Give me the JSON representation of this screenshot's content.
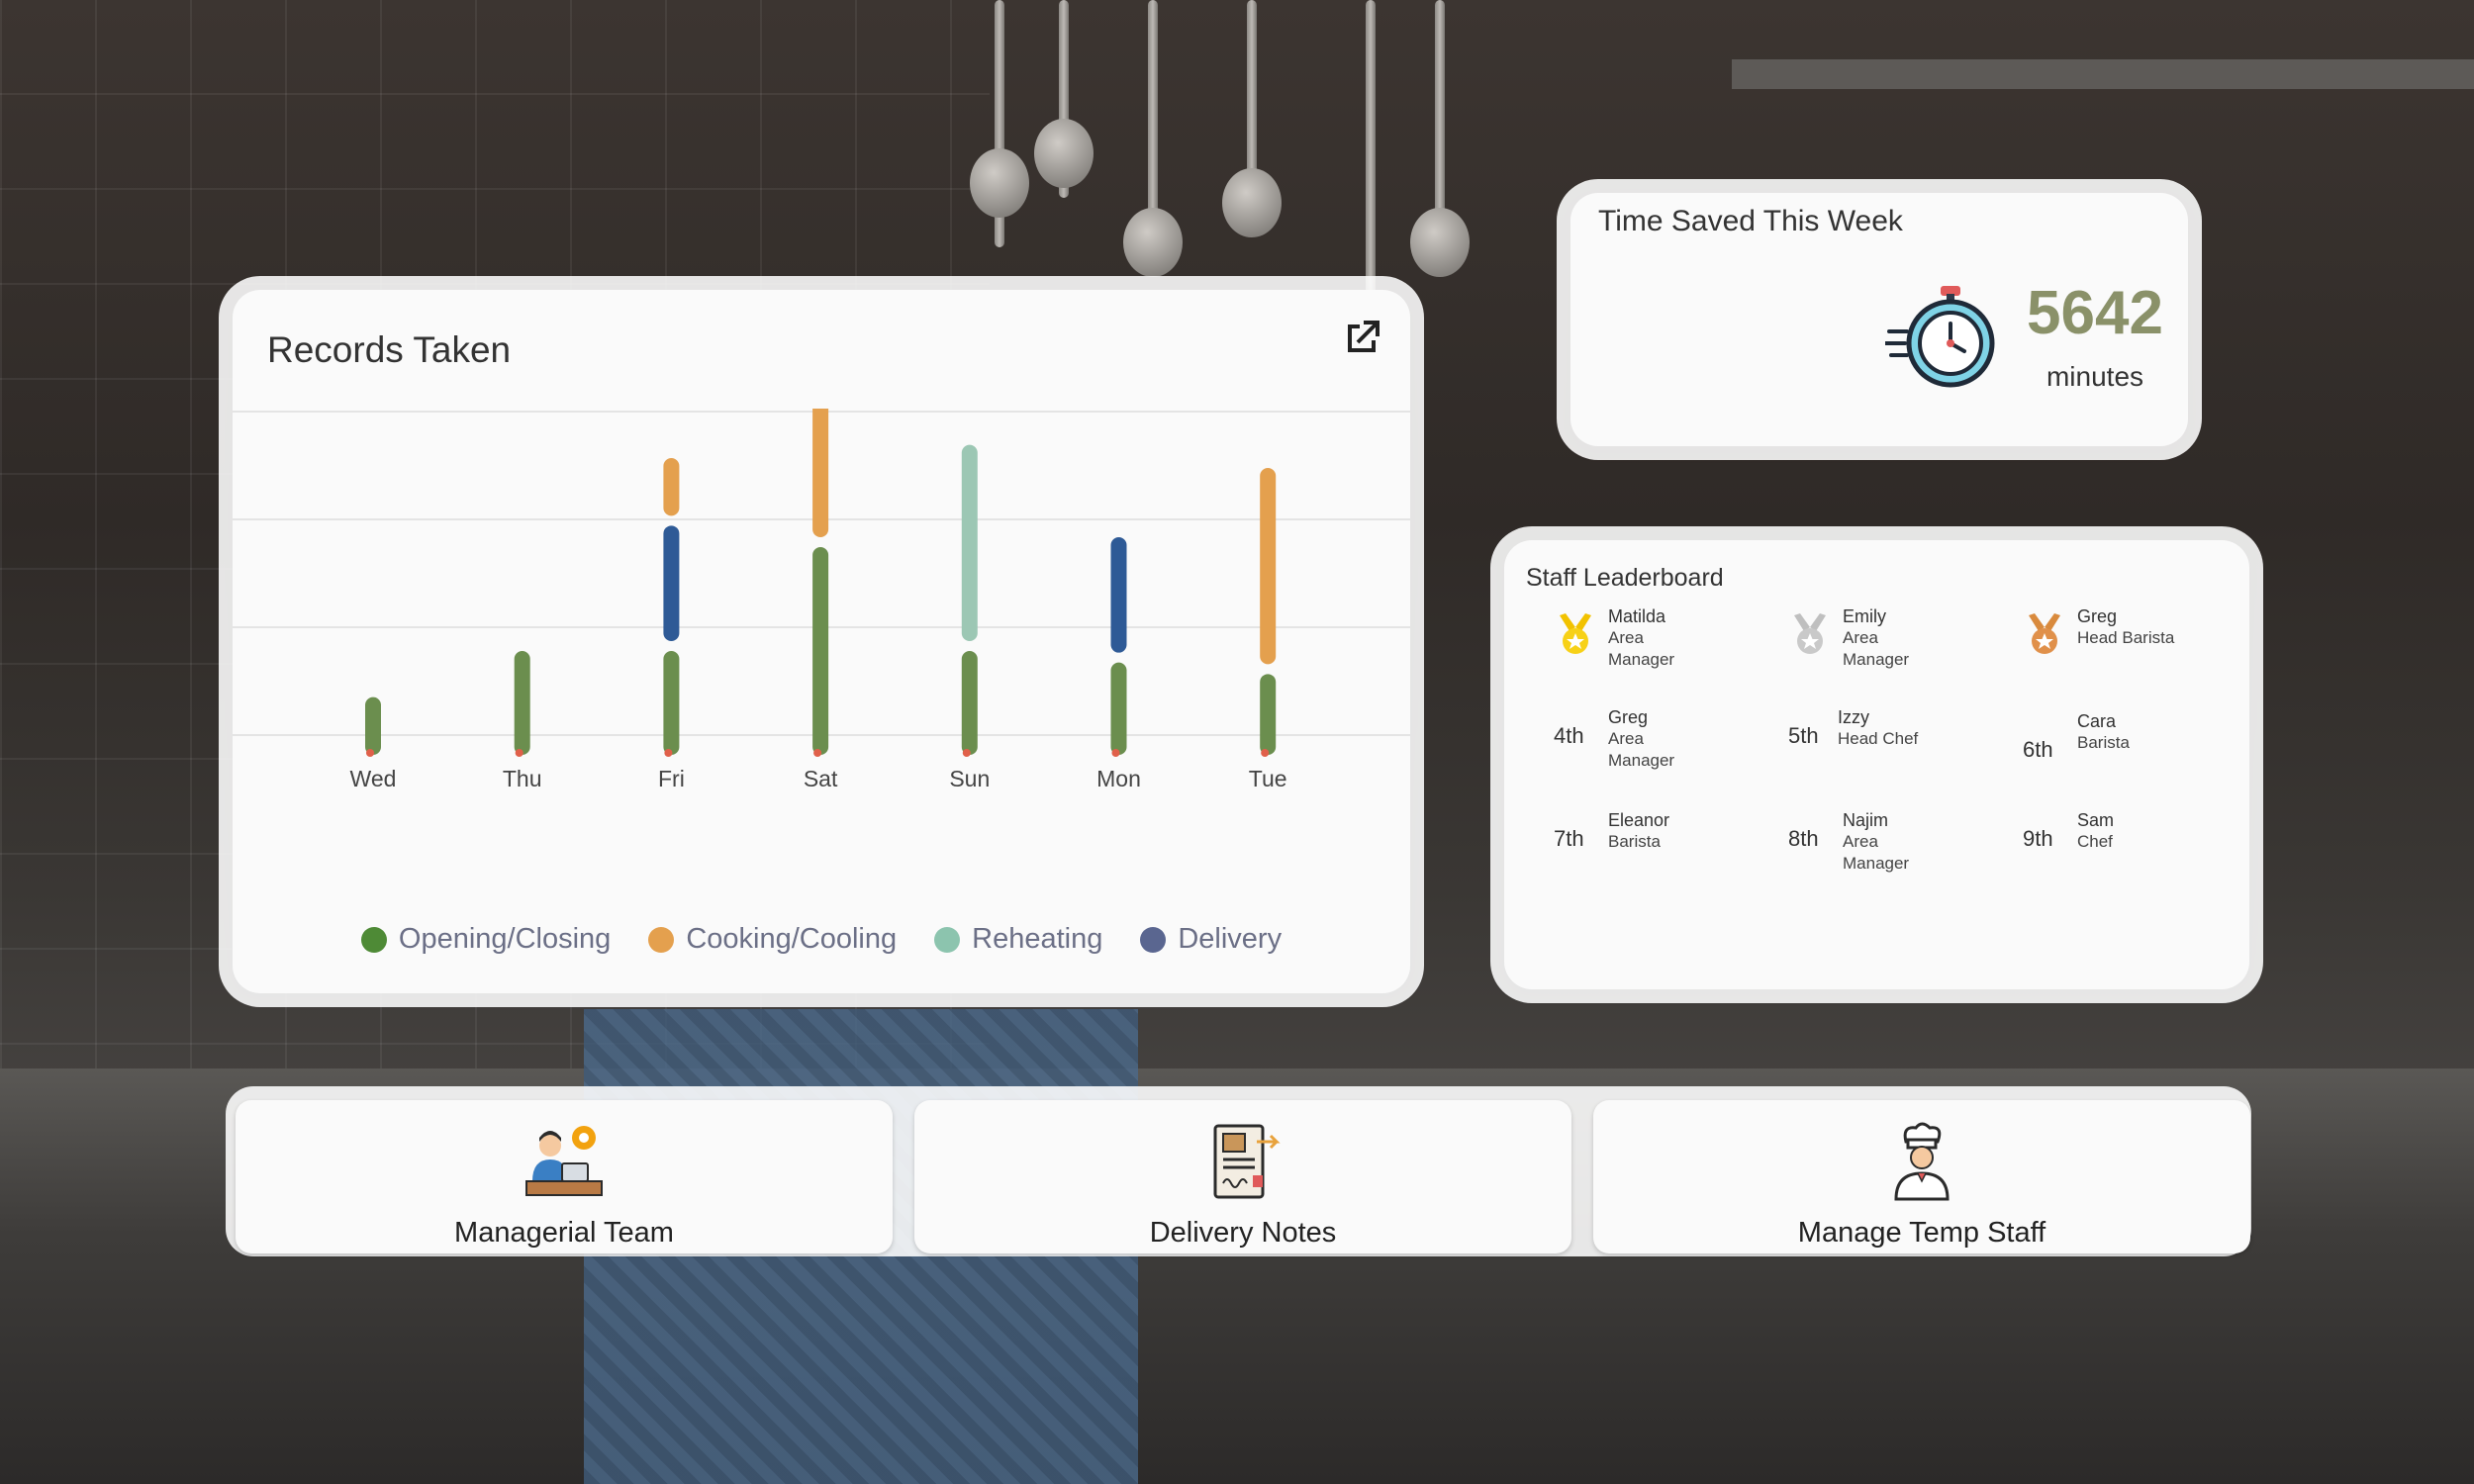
{
  "records": {
    "title": "Records Taken",
    "external_icon": "external-link-icon"
  },
  "chart_data": {
    "type": "bar",
    "title": "Records Taken",
    "categories": [
      "Wed",
      "Thu",
      "Fri",
      "Sat",
      "Sun",
      "Mon",
      "Tue"
    ],
    "series": [
      {
        "name": "Opening/Closing",
        "color": "#6b8e4e",
        "values": [
          5,
          9,
          9,
          18,
          9,
          8,
          7
        ]
      },
      {
        "name": "Cooking/Cooling",
        "color": "#e4a04e",
        "values": [
          0,
          0,
          5,
          12,
          0,
          0,
          17
        ]
      },
      {
        "name": "Reheating",
        "color": "#9cc7b4",
        "values": [
          0,
          0,
          0,
          0,
          17,
          0,
          0
        ]
      },
      {
        "name": "Delivery",
        "color": "#2e5a96",
        "values": [
          0,
          0,
          10,
          0,
          0,
          10,
          0
        ]
      }
    ],
    "ylim": [
      0,
      30
    ],
    "grid": true,
    "legend": "bottom"
  },
  "time_saved": {
    "title": "Time Saved This Week",
    "value": "5642",
    "unit": "minutes",
    "icon": "stopwatch-icon"
  },
  "leaderboard": {
    "title": "Staff Leaderboard",
    "entries": [
      {
        "rank": "1st",
        "medal": "gold",
        "name": "Matilda",
        "role_line1": "Area",
        "role_line2": "Manager"
      },
      {
        "rank": "2nd",
        "medal": "silver",
        "name": "Emily",
        "role_line1": "Area",
        "role_line2": "Manager"
      },
      {
        "rank": "3rd",
        "medal": "bronze",
        "name": "Greg",
        "role_line1": "Head Barista",
        "role_line2": ""
      },
      {
        "rank": "4th",
        "name": "Greg",
        "role_line1": "Area",
        "role_line2": "Manager"
      },
      {
        "rank": "5th",
        "name": "Izzy",
        "role_line1": "Head Chef",
        "role_line2": ""
      },
      {
        "rank": "6th",
        "name": "Cara",
        "role_line1": "Barista",
        "role_line2": ""
      },
      {
        "rank": "7th",
        "name": "Eleanor",
        "role_line1": "Barista",
        "role_line2": ""
      },
      {
        "rank": "8th",
        "name": "Najim",
        "role_line1": "Area",
        "role_line2": "Manager"
      },
      {
        "rank": "9th",
        "name": "Sam",
        "role_line1": "Chef",
        "role_line2": ""
      }
    ]
  },
  "links": [
    {
      "label": "Managerial Team",
      "icon": "manager-icon"
    },
    {
      "label": "Delivery Notes",
      "icon": "delivery-note-icon"
    },
    {
      "label": "Manage Temp Staff",
      "icon": "chef-icon"
    }
  ]
}
